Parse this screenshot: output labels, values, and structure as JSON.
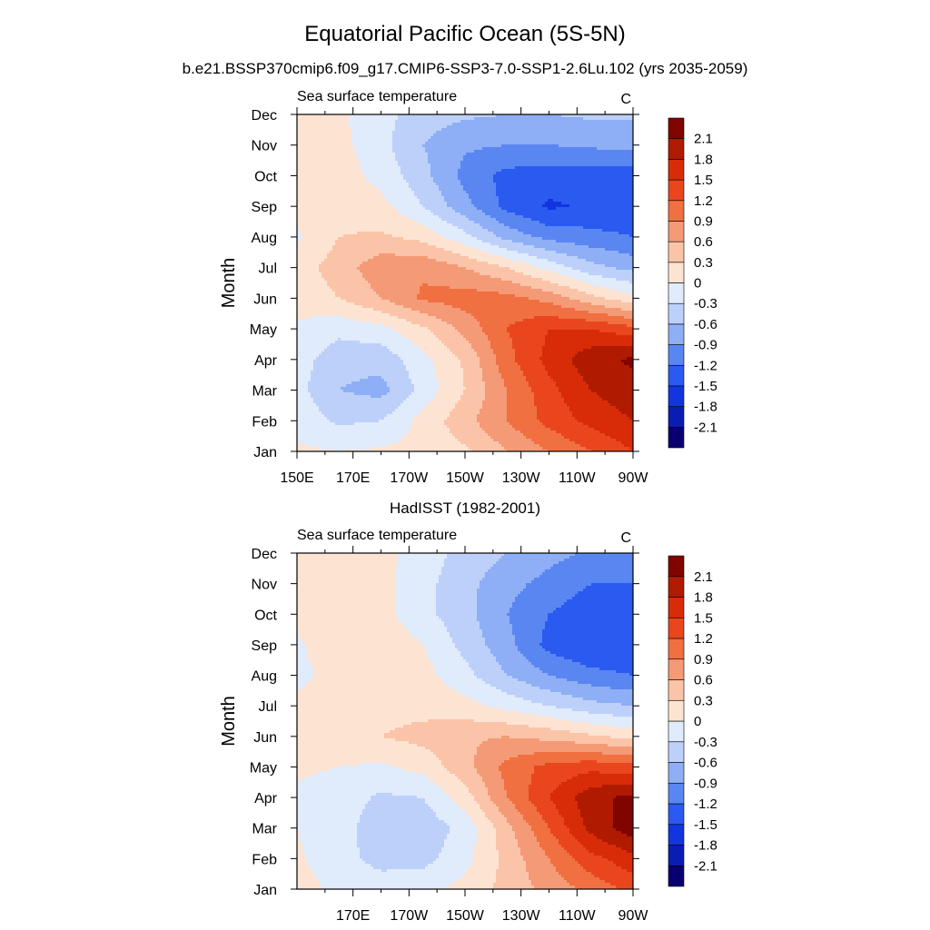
{
  "figure": {
    "title": "Equatorial Pacific Ocean (5S-5N)",
    "subtitle": "b.e21.BSSP370cmip6.f09_g17.CMIP6-SSP3-7.0-SSP1-2.6Lu.102 (yrs 2035-2059)"
  },
  "chart_data": [
    {
      "type": "heatmap",
      "title": "",
      "left_label": "Sea surface temperature",
      "right_label": "C",
      "ylabel": "Month",
      "xlabel": "",
      "x_ticks": [
        {
          "lon": 150,
          "label": "150E"
        },
        {
          "lon": 170,
          "label": "170E"
        },
        {
          "lon": 190,
          "label": "170W"
        },
        {
          "lon": 210,
          "label": "150W"
        },
        {
          "lon": 230,
          "label": "130W"
        },
        {
          "lon": 250,
          "label": "110W"
        },
        {
          "lon": 270,
          "label": "90W"
        }
      ],
      "y_ticks": [
        "Jan",
        "Feb",
        "Mar",
        "Apr",
        "May",
        "Jun",
        "Jul",
        "Aug",
        "Sep",
        "Oct",
        "Nov",
        "Dec"
      ],
      "xlim": [
        150,
        270
      ],
      "ylim": [
        1,
        12
      ],
      "months": [
        1,
        2,
        3,
        4,
        5,
        6,
        7,
        8,
        9,
        10,
        11,
        12
      ],
      "lons": [
        150,
        165,
        180,
        195,
        210,
        225,
        240,
        255,
        270
      ],
      "values": [
        [
          0.05,
          0.0,
          0.05,
          0.1,
          0.25,
          0.6,
          0.9,
          1.2,
          1.5
        ],
        [
          -0.1,
          -0.35,
          -0.3,
          0.1,
          0.5,
          0.9,
          1.3,
          1.6,
          1.8
        ],
        [
          -0.2,
          -0.6,
          -0.7,
          -0.2,
          0.3,
          0.9,
          1.4,
          1.8,
          2.0
        ],
        [
          -0.15,
          -0.5,
          -0.5,
          -0.1,
          0.35,
          1.1,
          1.6,
          2.0,
          2.15
        ],
        [
          -0.05,
          -0.2,
          -0.1,
          0.25,
          0.7,
          1.2,
          1.5,
          1.5,
          1.3
        ],
        [
          0.1,
          0.3,
          0.6,
          0.95,
          1.05,
          1.0,
          0.8,
          0.4,
          0.1
        ],
        [
          0.15,
          0.45,
          0.8,
          0.85,
          0.6,
          0.3,
          -0.1,
          -0.5,
          -0.7
        ],
        [
          -0.05,
          0.3,
          0.35,
          0.2,
          -0.2,
          -0.7,
          -1.0,
          -1.1,
          -1.2
        ],
        [
          0.1,
          0.2,
          0.1,
          -0.3,
          -0.8,
          -1.3,
          -1.55,
          -1.45,
          -1.45
        ],
        [
          0.1,
          0.15,
          -0.1,
          -0.5,
          -1.0,
          -1.3,
          -1.35,
          -1.35,
          -1.35
        ],
        [
          0.15,
          0.1,
          -0.2,
          -0.6,
          -0.85,
          -0.9,
          -0.9,
          -0.85,
          -0.8
        ],
        [
          0.15,
          0.05,
          -0.2,
          -0.45,
          -0.55,
          -0.6,
          -0.6,
          -0.55,
          -0.55
        ]
      ],
      "levels": [
        -2.1,
        -1.8,
        -1.5,
        -1.2,
        -0.9,
        -0.6,
        -0.3,
        0,
        0.3,
        0.6,
        0.9,
        1.2,
        1.5,
        1.8,
        2.1
      ],
      "level_labels": [
        "2.1",
        "1.8",
        "1.5",
        "1.2",
        "0.9",
        "0.6",
        "0.3",
        "0",
        "-0.3",
        "-0.6",
        "-0.9",
        "-1.2",
        "-1.5",
        "-1.8",
        "-2.1"
      ],
      "colors": [
        "#08006e",
        "#0a1db3",
        "#1136e0",
        "#2a5af0",
        "#5a86f2",
        "#8eaef6",
        "#bcd0fa",
        "#e0ebfc",
        "#fde4d2",
        "#fbc4a8",
        "#f59a76",
        "#f07041",
        "#e9461e",
        "#d82c08",
        "#b01b00",
        "#800400"
      ],
      "grid": false,
      "legend": "right"
    },
    {
      "type": "heatmap",
      "title": "HadISST (1982-2001)",
      "left_label": "Sea surface temperature",
      "right_label": "C",
      "ylabel": "Month",
      "xlabel": "",
      "x_ticks": [
        {
          "lon": 170,
          "label": "170E"
        },
        {
          "lon": 190,
          "label": "170W"
        },
        {
          "lon": 210,
          "label": "150W"
        },
        {
          "lon": 230,
          "label": "130W"
        },
        {
          "lon": 250,
          "label": "110W"
        },
        {
          "lon": 270,
          "label": "90W"
        }
      ],
      "y_ticks": [
        "Jan",
        "Feb",
        "Mar",
        "Apr",
        "May",
        "Jun",
        "Jul",
        "Aug",
        "Sep",
        "Oct",
        "Nov",
        "Dec"
      ],
      "xlim": [
        150,
        270
      ],
      "ylim": [
        1,
        12
      ],
      "months": [
        1,
        2,
        3,
        4,
        5,
        6,
        7,
        8,
        9,
        10,
        11,
        12
      ],
      "lons": [
        150,
        165,
        180,
        195,
        210,
        225,
        240,
        255,
        270
      ],
      "values": [
        [
          0.15,
          -0.1,
          -0.15,
          -0.1,
          0.1,
          0.4,
          0.7,
          1.0,
          1.3
        ],
        [
          0.05,
          -0.2,
          -0.4,
          -0.4,
          -0.1,
          0.4,
          0.9,
          1.4,
          1.7
        ],
        [
          0.0,
          -0.2,
          -0.45,
          -0.5,
          -0.2,
          0.5,
          1.2,
          1.9,
          2.3
        ],
        [
          -0.05,
          -0.15,
          -0.35,
          -0.3,
          0.15,
          0.9,
          1.5,
          2.0,
          2.2
        ],
        [
          0.05,
          0.0,
          -0.05,
          0.1,
          0.5,
          1.0,
          1.3,
          1.4,
          1.3
        ],
        [
          0.1,
          0.2,
          0.3,
          0.4,
          0.55,
          0.6,
          0.5,
          0.35,
          0.2
        ],
        [
          0.1,
          0.15,
          0.2,
          0.2,
          0.1,
          -0.1,
          -0.3,
          -0.5,
          -0.6
        ],
        [
          -0.1,
          0.15,
          0.2,
          0.1,
          -0.2,
          -0.6,
          -0.9,
          -1.1,
          -1.2
        ],
        [
          -0.05,
          0.2,
          0.2,
          0.0,
          -0.4,
          -0.8,
          -1.3,
          -1.5,
          -1.5
        ],
        [
          0.1,
          0.2,
          0.1,
          -0.2,
          -0.5,
          -0.9,
          -1.2,
          -1.4,
          -1.4
        ],
        [
          0.15,
          0.2,
          0.1,
          -0.2,
          -0.5,
          -0.8,
          -1.0,
          -1.2,
          -1.2
        ],
        [
          0.15,
          0.2,
          0.1,
          -0.15,
          -0.4,
          -0.6,
          -0.8,
          -0.95,
          -1.0
        ]
      ],
      "levels": [
        -2.1,
        -1.8,
        -1.5,
        -1.2,
        -0.9,
        -0.6,
        -0.3,
        0,
        0.3,
        0.6,
        0.9,
        1.2,
        1.5,
        1.8,
        2.1
      ],
      "level_labels": [
        "2.1",
        "1.8",
        "1.5",
        "1.2",
        "0.9",
        "0.6",
        "0.3",
        "0",
        "-0.3",
        "-0.6",
        "-0.9",
        "-1.2",
        "-1.5",
        "-1.8",
        "-2.1"
      ],
      "colors": [
        "#08006e",
        "#0a1db3",
        "#1136e0",
        "#2a5af0",
        "#5a86f2",
        "#8eaef6",
        "#bcd0fa",
        "#e0ebfc",
        "#fde4d2",
        "#fbc4a8",
        "#f59a76",
        "#f07041",
        "#e9461e",
        "#d82c08",
        "#b01b00",
        "#800400"
      ],
      "grid": false,
      "legend": "right"
    }
  ]
}
